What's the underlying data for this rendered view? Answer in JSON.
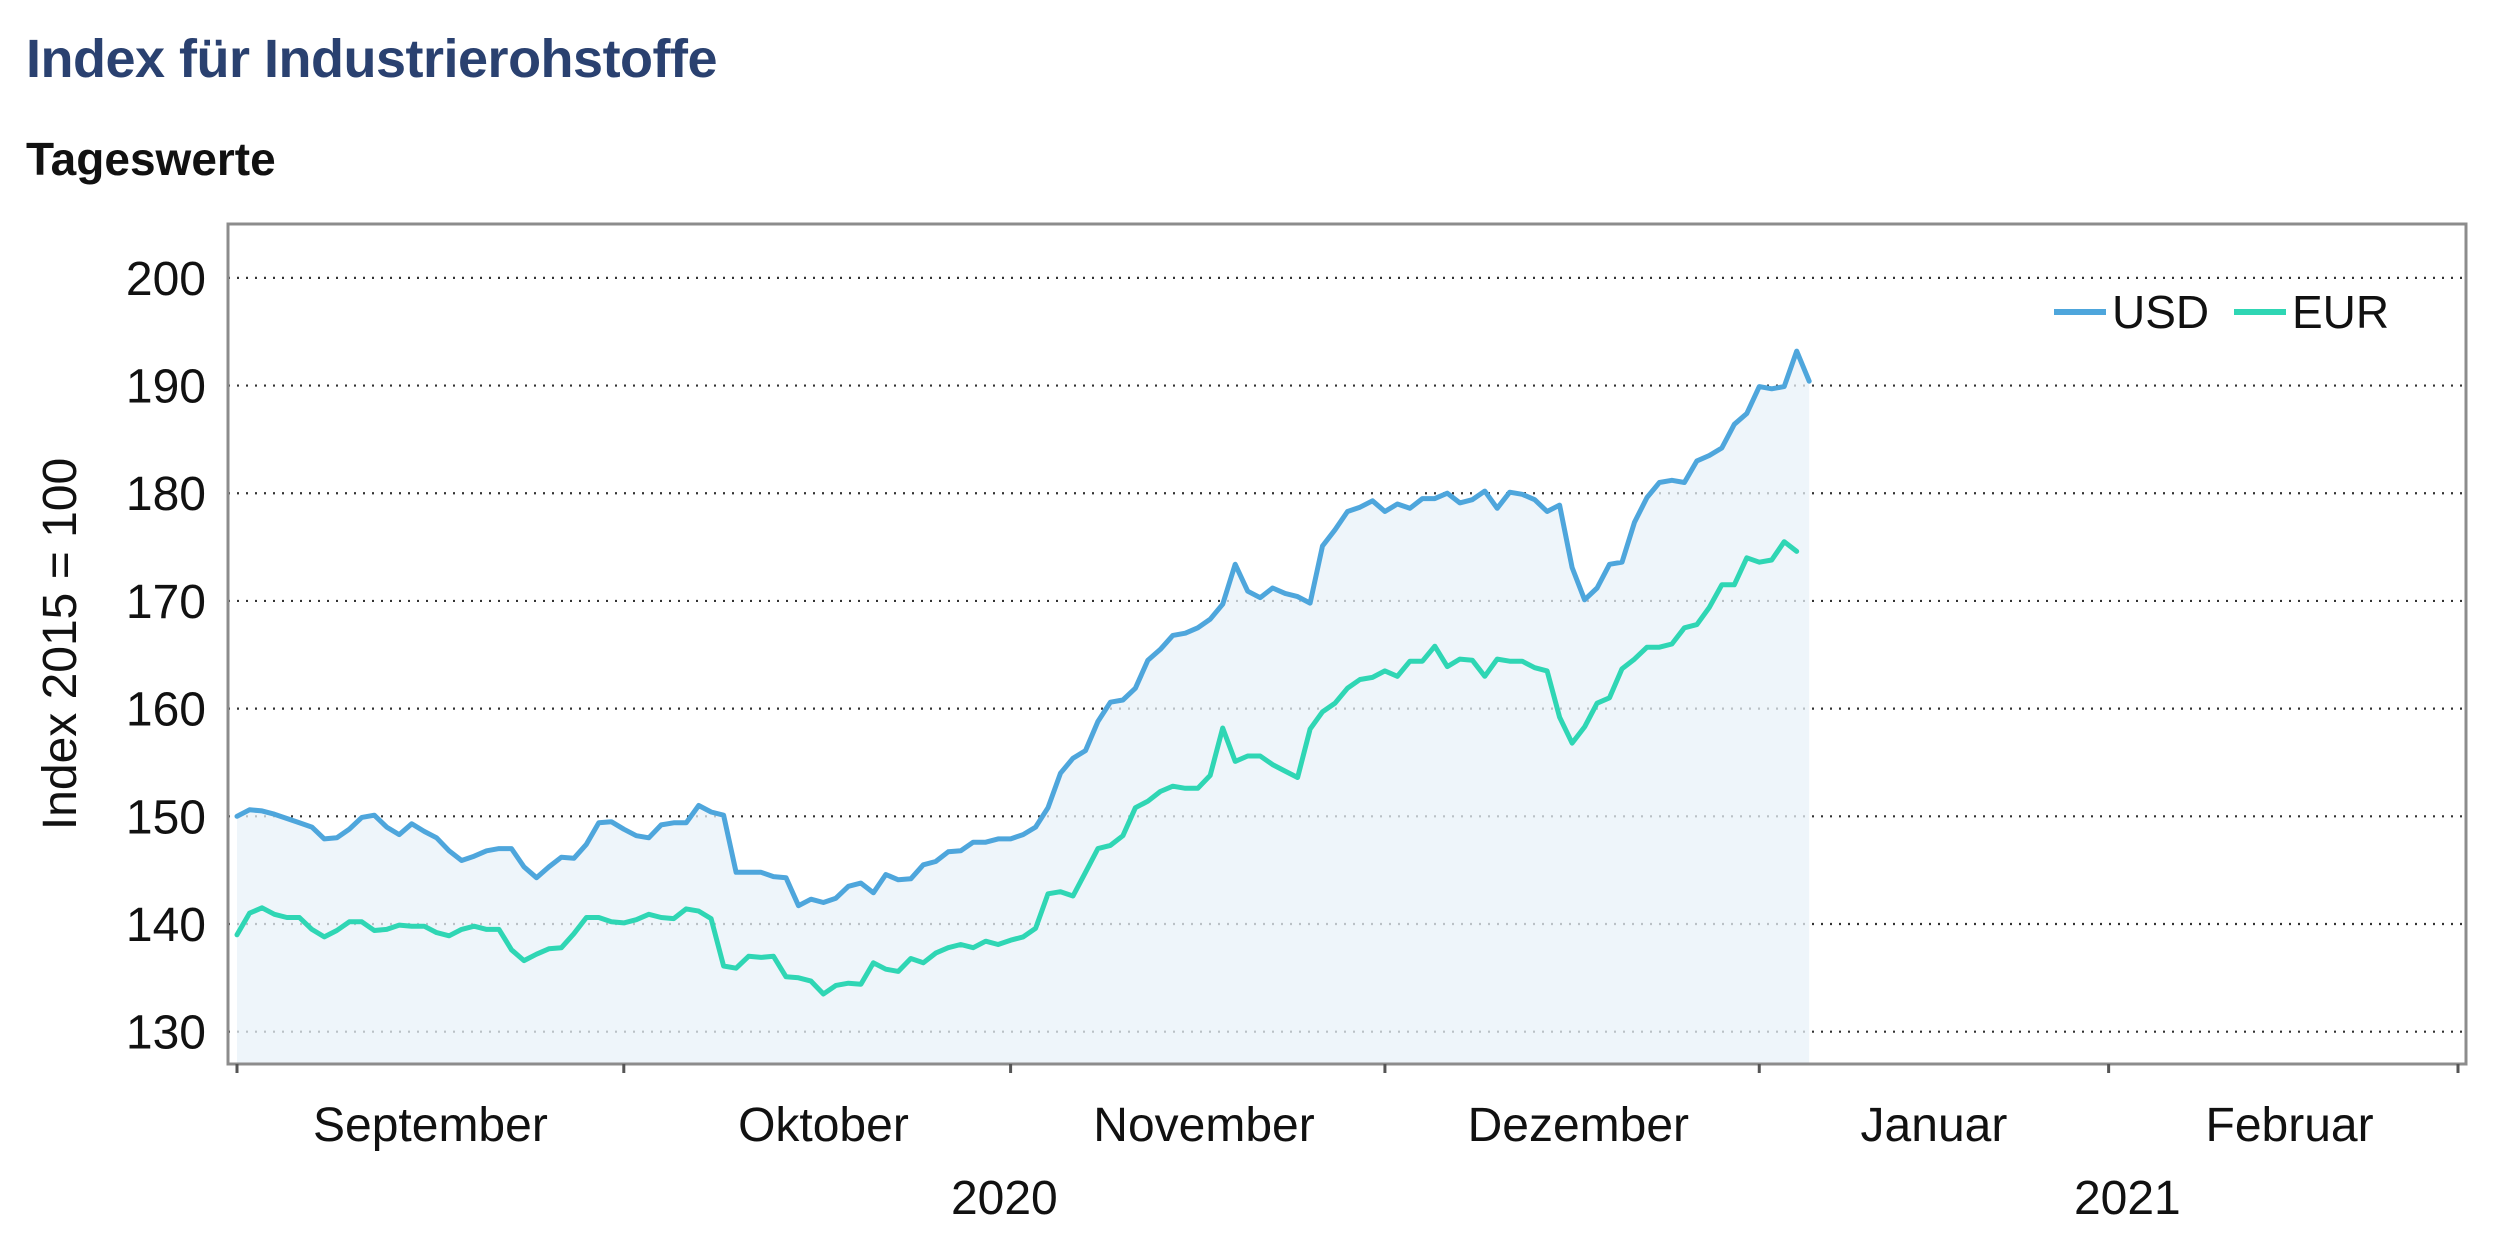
{
  "header": {
    "title": "Index für Industrierohstoffe",
    "subtitle": "Tageswerte"
  },
  "chart_data": {
    "type": "area",
    "ylabel": "Index 2015 = 100",
    "ylim": [
      127,
      205
    ],
    "yticks": [
      130,
      140,
      150,
      160,
      170,
      180,
      190,
      200
    ],
    "grid": "horizontal-dotted",
    "legend_position": "top-right",
    "x_index_range": [
      0,
      178
    ],
    "month_labels": [
      {
        "label": "September",
        "center_index": 15.5
      },
      {
        "label": "Oktober",
        "center_index": 47
      },
      {
        "label": "November",
        "center_index": 77.5
      },
      {
        "label": "Dezember",
        "center_index": 107.5
      },
      {
        "label": "Januar",
        "center_index": 136
      },
      {
        "label": "Februar",
        "center_index": 164.5
      }
    ],
    "month_boundaries": [
      0,
      31,
      62,
      92,
      122,
      150,
      178
    ],
    "year_labels": [
      {
        "label": "2020",
        "center_index": 61.5
      },
      {
        "label": "2021",
        "center_index": 151.5
      }
    ],
    "colors": {
      "USD": "#4ea6dc",
      "EUR": "#2fd6b4",
      "area_fill": "#e8f2f8"
    },
    "series": [
      {
        "name": "USD",
        "values": [
          150.0,
          150.6,
          150.5,
          150.2,
          149.8,
          149.4,
          149.0,
          147.9,
          148.0,
          148.8,
          149.9,
          150.1,
          149.0,
          148.3,
          149.3,
          148.6,
          148.0,
          146.8,
          145.9,
          146.3,
          146.8,
          147.0,
          147.0,
          145.3,
          144.3,
          145.3,
          146.2,
          146.1,
          147.4,
          149.4,
          149.5,
          148.8,
          148.2,
          148.0,
          149.2,
          149.4,
          149.4,
          151.0,
          150.4,
          150.1,
          144.8,
          144.8,
          144.8,
          144.4,
          144.3,
          141.7,
          142.3,
          142.0,
          142.4,
          143.5,
          143.8,
          142.9,
          144.6,
          144.1,
          144.2,
          145.5,
          145.8,
          146.7,
          146.8,
          147.6,
          147.6,
          147.9,
          147.9,
          148.3,
          149.0,
          150.8,
          154.0,
          155.4,
          156.1,
          158.8,
          160.6,
          160.8,
          161.9,
          164.5,
          165.5,
          166.8,
          167.0,
          167.5,
          168.3,
          169.7,
          173.4,
          170.9,
          170.3,
          171.2,
          170.7,
          170.4,
          169.8,
          175.1,
          176.6,
          178.3,
          178.7,
          179.3,
          178.3,
          179.0,
          178.6,
          179.5,
          179.5,
          180.0,
          179.1,
          179.4,
          180.2,
          178.6,
          180.1,
          179.9,
          179.4,
          178.3,
          178.9,
          173.1,
          170.1,
          171.2,
          173.4,
          173.6,
          177.3,
          179.6,
          181.0,
          181.2,
          181.0,
          183.0,
          183.5,
          184.2,
          186.4,
          187.4,
          189.9,
          189.7,
          189.9,
          193.2,
          190.4
        ]
      },
      {
        "name": "EUR",
        "values": [
          139.0,
          141.0,
          141.5,
          140.9,
          140.6,
          140.6,
          139.5,
          138.8,
          139.4,
          140.2,
          140.2,
          139.4,
          139.5,
          139.9,
          139.8,
          139.8,
          139.2,
          138.9,
          139.5,
          139.8,
          139.5,
          139.5,
          137.6,
          136.6,
          137.2,
          137.7,
          137.8,
          139.1,
          140.6,
          140.6,
          140.2,
          140.1,
          140.4,
          140.9,
          140.6,
          140.5,
          141.4,
          141.2,
          140.5,
          136.1,
          135.9,
          137.0,
          136.9,
          137.0,
          135.1,
          135.0,
          134.7,
          133.5,
          134.3,
          134.5,
          134.4,
          136.4,
          135.8,
          135.6,
          136.8,
          136.4,
          137.3,
          137.8,
          138.1,
          137.8,
          138.4,
          138.1,
          138.5,
          138.8,
          139.6,
          142.8,
          143.0,
          142.6,
          144.8,
          147.0,
          147.3,
          148.2,
          150.8,
          151.4,
          152.3,
          152.8,
          152.6,
          152.6,
          153.8,
          158.2,
          155.1,
          155.6,
          155.6,
          154.8,
          154.2,
          153.6,
          158.1,
          159.7,
          160.5,
          161.9,
          162.7,
          162.9,
          163.5,
          163.0,
          164.4,
          164.4,
          165.8,
          163.9,
          164.6,
          164.5,
          163.0,
          164.6,
          164.4,
          164.4,
          163.8,
          163.5,
          159.2,
          156.8,
          158.3,
          160.5,
          161.0,
          163.7,
          164.6,
          165.7,
          165.7,
          166.0,
          167.5,
          167.8,
          169.4,
          171.5,
          171.5,
          174.0,
          173.6,
          173.8,
          175.5,
          174.6
        ]
      }
    ]
  }
}
